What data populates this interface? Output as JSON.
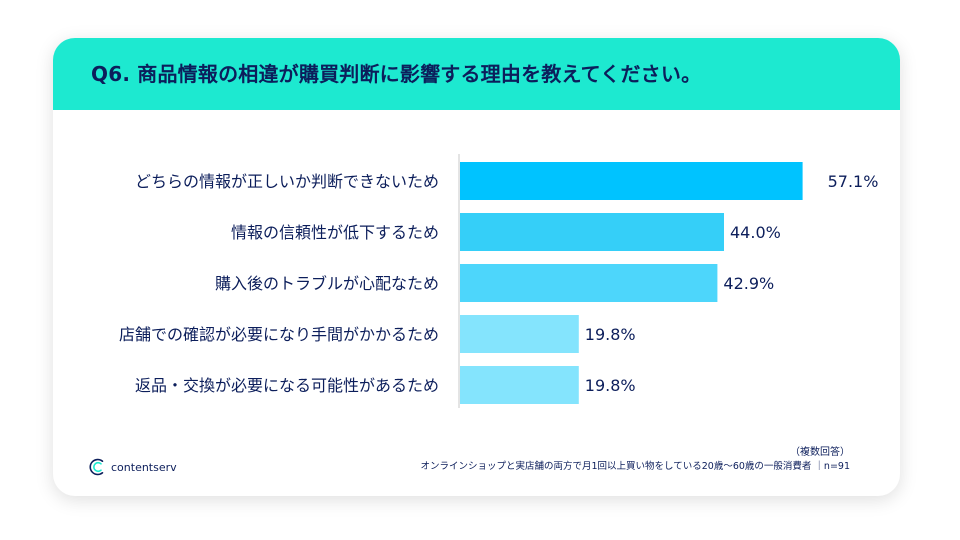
{
  "header": {
    "title": "Q6. 商品情報の相違が購買判断に影響する理由を教えてください。"
  },
  "chart_data": {
    "type": "bar",
    "orientation": "horizontal",
    "title": "Q6. 商品情報の相違が購買判断に影響する理由を教えてください。",
    "categories": [
      "どちらの情報が正しいか判断できないため",
      "情報の信頼性が低下するため",
      "購入後のトラブルが心配なため",
      "店舗での確認が必要になり手間がかかるため",
      "返品・交換が必要になる可能性があるため"
    ],
    "values": [
      57.1,
      44.0,
      42.9,
      19.8,
      19.8
    ],
    "value_labels": [
      "57.1%",
      "44.0%",
      "42.9%",
      "19.8%",
      "19.8%"
    ],
    "unit": "%",
    "xlim": [
      0,
      62
    ],
    "bar_colors": [
      "#00c3ff",
      "#35cff8",
      "#4dd6fb",
      "#84e4fd",
      "#84e4fd"
    ],
    "grid": false
  },
  "notes": {
    "multiple_answer": "（複数回答）",
    "footnote": "オンラインショップと実店舗の両方で月1回以上買い物をしている20歳～60歳の一般消費者 ｜n=91"
  },
  "brand": {
    "name": "contentserv",
    "color": "#0c1e5b"
  }
}
